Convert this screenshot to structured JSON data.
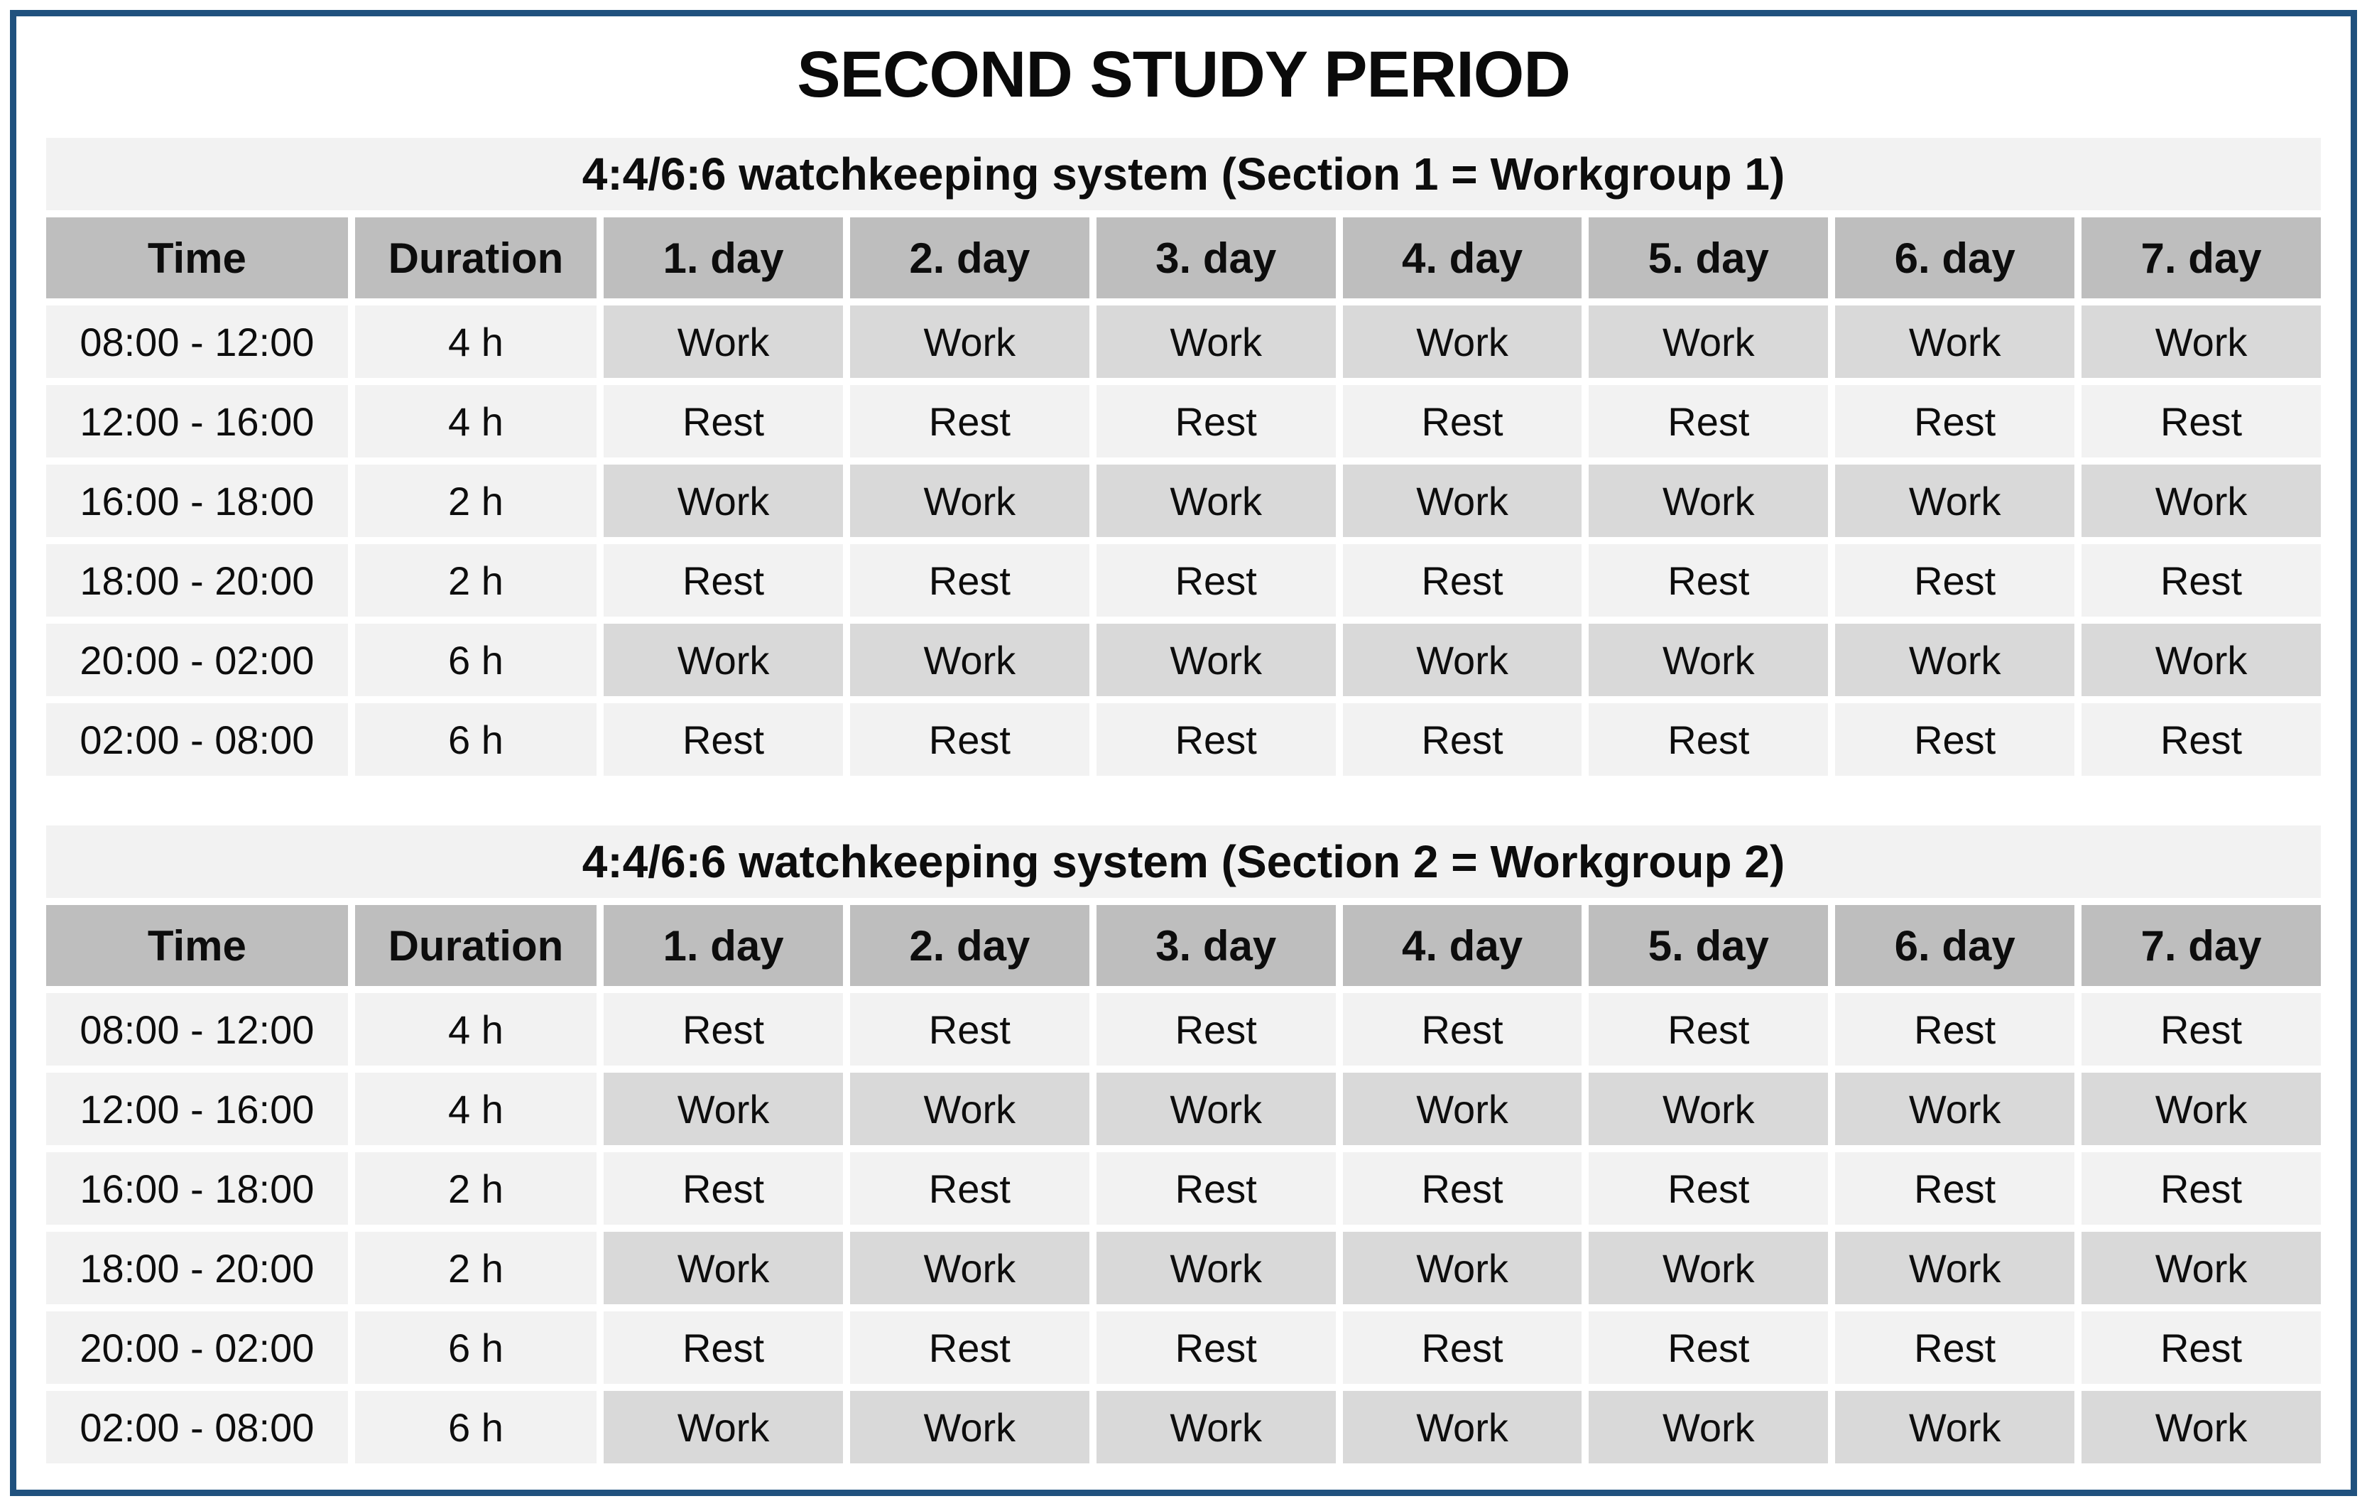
{
  "title": "SECOND STUDY PERIOD",
  "colors": {
    "frame_border": "#20517e",
    "header_bg": "#bebebe",
    "work_bg": "#d9d9d9",
    "rest_bg": "#f2f2f2",
    "subtitle_band_bg": "#f2f2f2",
    "text": "#0d0d0d"
  },
  "columns": [
    "Time",
    "Duration",
    "1. day",
    "2. day",
    "3. day",
    "4. day",
    "5. day",
    "6. day",
    "7. day"
  ],
  "tables": [
    {
      "subtitle": "4:4/6:6 watchkeeping system (Section 1 = Workgroup 1)",
      "rows": [
        {
          "time": "08:00 - 12:00",
          "duration": "4 h",
          "days": [
            "Work",
            "Work",
            "Work",
            "Work",
            "Work",
            "Work",
            "Work"
          ]
        },
        {
          "time": "12:00 - 16:00",
          "duration": "4 h",
          "days": [
            "Rest",
            "Rest",
            "Rest",
            "Rest",
            "Rest",
            "Rest",
            "Rest"
          ]
        },
        {
          "time": "16:00 - 18:00",
          "duration": "2 h",
          "days": [
            "Work",
            "Work",
            "Work",
            "Work",
            "Work",
            "Work",
            "Work"
          ]
        },
        {
          "time": "18:00 - 20:00",
          "duration": "2 h",
          "days": [
            "Rest",
            "Rest",
            "Rest",
            "Rest",
            "Rest",
            "Rest",
            "Rest"
          ]
        },
        {
          "time": "20:00 - 02:00",
          "duration": "6 h",
          "days": [
            "Work",
            "Work",
            "Work",
            "Work",
            "Work",
            "Work",
            "Work"
          ]
        },
        {
          "time": "02:00 - 08:00",
          "duration": "6 h",
          "days": [
            "Rest",
            "Rest",
            "Rest",
            "Rest",
            "Rest",
            "Rest",
            "Rest"
          ]
        }
      ]
    },
    {
      "subtitle": "4:4/6:6 watchkeeping system (Section 2 = Workgroup 2)",
      "rows": [
        {
          "time": "08:00 - 12:00",
          "duration": "4 h",
          "days": [
            "Rest",
            "Rest",
            "Rest",
            "Rest",
            "Rest",
            "Rest",
            "Rest"
          ]
        },
        {
          "time": "12:00 - 16:00",
          "duration": "4 h",
          "days": [
            "Work",
            "Work",
            "Work",
            "Work",
            "Work",
            "Work",
            "Work"
          ]
        },
        {
          "time": "16:00 - 18:00",
          "duration": "2 h",
          "days": [
            "Rest",
            "Rest",
            "Rest",
            "Rest",
            "Rest",
            "Rest",
            "Rest"
          ]
        },
        {
          "time": "18:00 - 20:00",
          "duration": "2 h",
          "days": [
            "Work",
            "Work",
            "Work",
            "Work",
            "Work",
            "Work",
            "Work"
          ]
        },
        {
          "time": "20:00 - 02:00",
          "duration": "6 h",
          "days": [
            "Rest",
            "Rest",
            "Rest",
            "Rest",
            "Rest",
            "Rest",
            "Rest"
          ]
        },
        {
          "time": "02:00 - 08:00",
          "duration": "6 h",
          "days": [
            "Work",
            "Work",
            "Work",
            "Work",
            "Work",
            "Work",
            "Work"
          ]
        }
      ]
    }
  ]
}
